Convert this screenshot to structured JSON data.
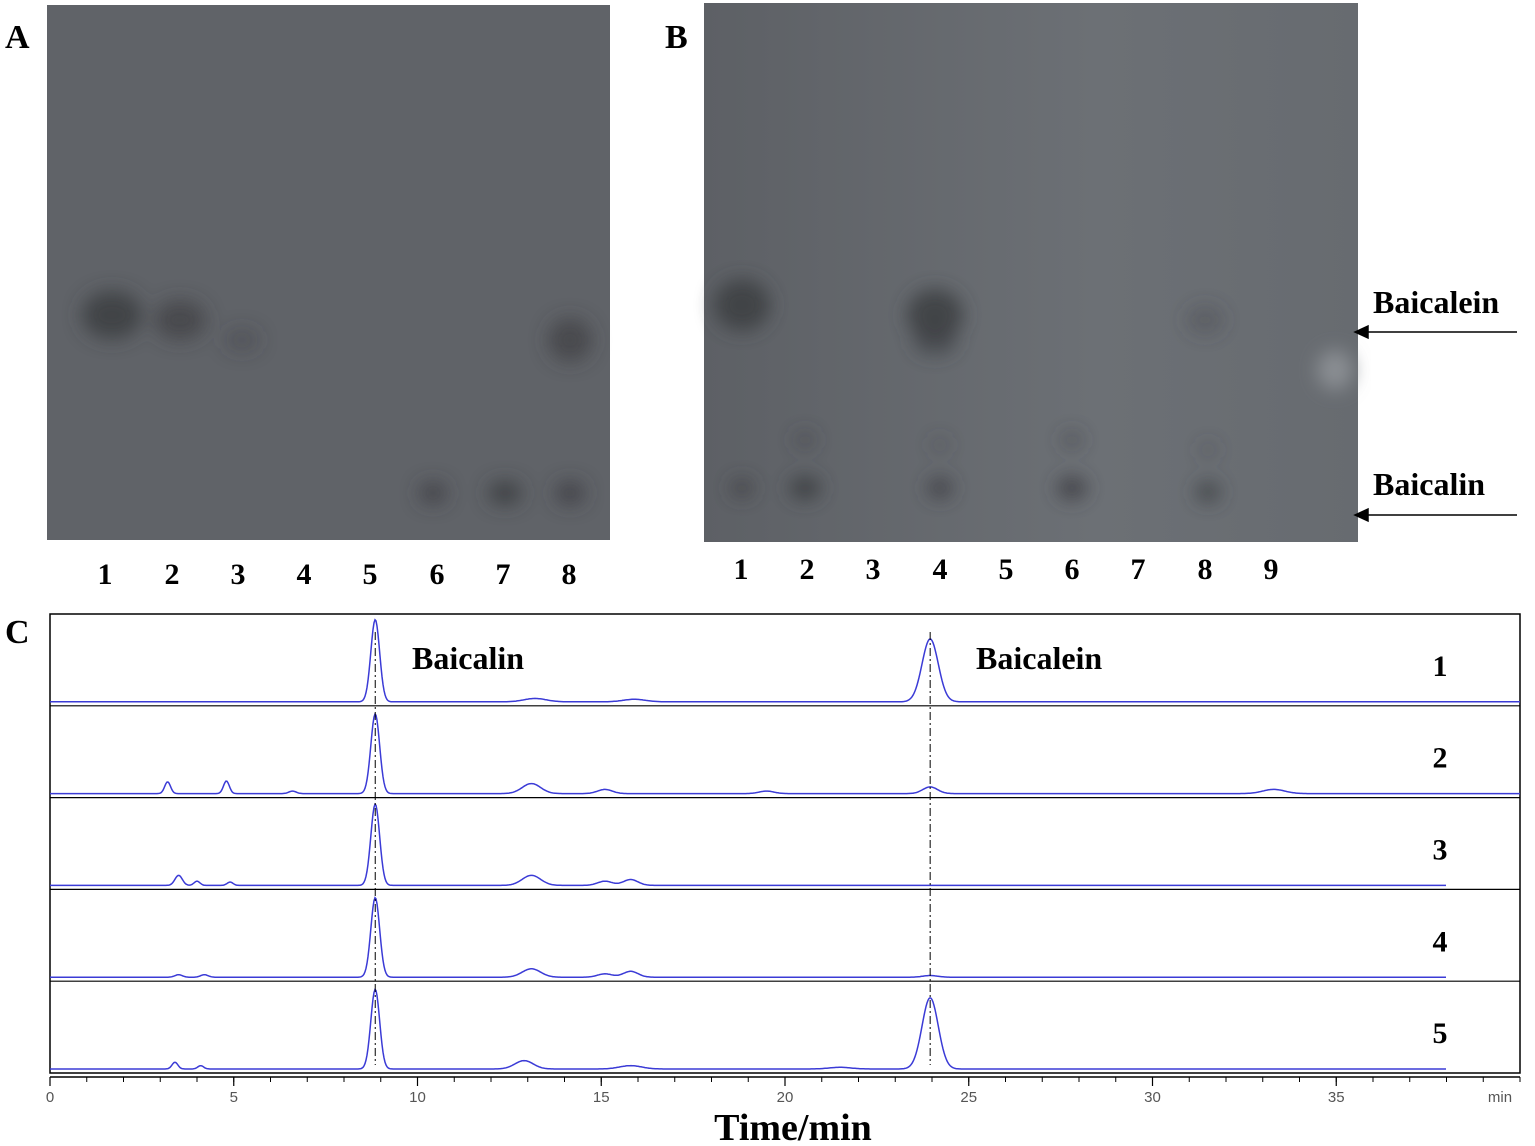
{
  "panels": {
    "A": {
      "label": "A",
      "lanes": [
        "1",
        "2",
        "3",
        "4",
        "5",
        "6",
        "7",
        "8"
      ]
    },
    "B": {
      "label": "B",
      "lanes": [
        "1",
        "2",
        "3",
        "4",
        "5",
        "6",
        "7",
        "8",
        "9"
      ],
      "annotations": [
        "Baicalein",
        "Baicalin"
      ]
    },
    "C": {
      "label": "C",
      "peak_labels": [
        "Baicalin",
        "Baicalein"
      ],
      "x_axis_label": "Time/min",
      "x_unit": "min",
      "xlim": [
        0,
        40
      ],
      "xticks": [
        0,
        5,
        10,
        15,
        20,
        25,
        30,
        35
      ],
      "minor_step": 1,
      "reference_lines": [
        8.85,
        23.95
      ],
      "color": "#3b3bd6",
      "series": [
        {
          "name": "1",
          "end": 40,
          "peaks": [
            [
              8.85,
              0.98,
              0.12
            ],
            [
              13.2,
              0.04,
              0.3
            ],
            [
              15.9,
              0.03,
              0.3
            ],
            [
              23.95,
              0.75,
              0.22
            ]
          ]
        },
        {
          "name": "2",
          "end": 40,
          "peaks": [
            [
              3.2,
              0.14,
              0.08
            ],
            [
              4.8,
              0.15,
              0.08
            ],
            [
              6.6,
              0.03,
              0.1
            ],
            [
              8.85,
              0.95,
              0.12
            ],
            [
              13.1,
              0.12,
              0.25
            ],
            [
              15.1,
              0.05,
              0.2
            ],
            [
              19.5,
              0.03,
              0.2
            ],
            [
              23.95,
              0.08,
              0.2
            ],
            [
              33.3,
              0.05,
              0.3
            ]
          ]
        },
        {
          "name": "3",
          "end": 38,
          "peaks": [
            [
              3.5,
              0.12,
              0.1
            ],
            [
              4.0,
              0.05,
              0.08
            ],
            [
              4.9,
              0.04,
              0.08
            ],
            [
              8.85,
              0.97,
              0.12
            ],
            [
              13.1,
              0.12,
              0.25
            ],
            [
              15.1,
              0.05,
              0.2
            ],
            [
              15.8,
              0.07,
              0.2
            ]
          ]
        },
        {
          "name": "4",
          "end": 38,
          "peaks": [
            [
              3.5,
              0.03,
              0.1
            ],
            [
              4.2,
              0.03,
              0.1
            ],
            [
              8.85,
              0.95,
              0.12
            ],
            [
              13.1,
              0.1,
              0.25
            ],
            [
              15.1,
              0.04,
              0.2
            ],
            [
              15.8,
              0.07,
              0.2
            ],
            [
              23.95,
              0.02,
              0.2
            ]
          ]
        },
        {
          "name": "5",
          "end": 38,
          "peaks": [
            [
              3.4,
              0.08,
              0.08
            ],
            [
              4.1,
              0.04,
              0.08
            ],
            [
              8.85,
              0.95,
              0.12
            ],
            [
              12.9,
              0.1,
              0.25
            ],
            [
              15.8,
              0.04,
              0.3
            ],
            [
              21.5,
              0.02,
              0.3
            ],
            [
              23.95,
              0.85,
              0.22
            ]
          ]
        }
      ]
    }
  }
}
